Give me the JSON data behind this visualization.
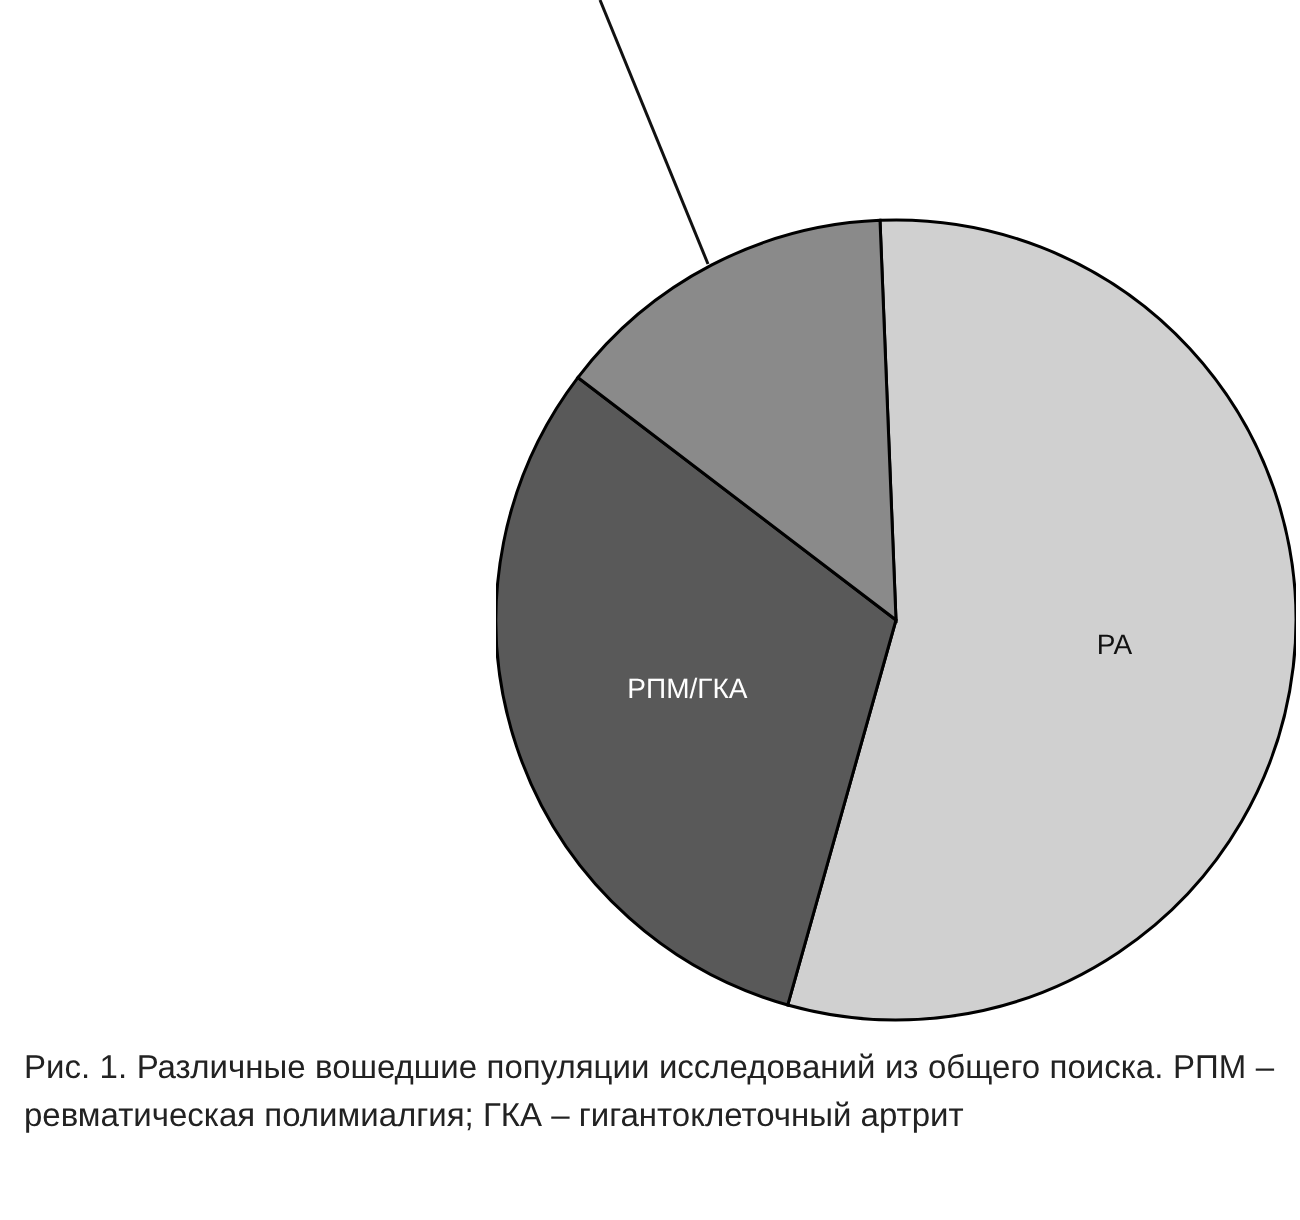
{
  "chart_data": {
    "type": "pie",
    "categories": [
      "РА",
      "РПМ/ГКА",
      null
    ],
    "values": [
      55,
      31,
      14
    ],
    "colors": [
      "#d0d0d0",
      "#595959",
      "#8a8a8a"
    ],
    "annotations": [
      "Рис. 1. Различные вошедшие популяции исследований из общего поиска. РПМ – ревматическая полимиалгия; ГКА – гигантоклеточный артрит"
    ]
  }
}
